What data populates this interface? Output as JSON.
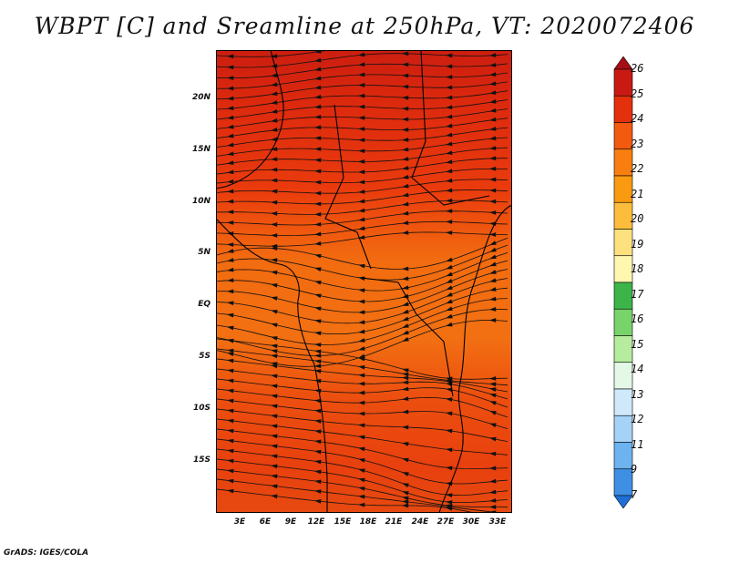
{
  "title": "WBPT [C] and Sreamline at 250hPa, VT: 2020072406",
  "credit": "GrADS: IGES/COLA",
  "lat_labels": [
    "20N",
    "15N",
    "10N",
    "5N",
    "EQ",
    "5S",
    "10S",
    "15S"
  ],
  "lon_labels": [
    "3E",
    "6E",
    "9E",
    "12E",
    "15E",
    "18E",
    "21E",
    "24E",
    "27E",
    "30E",
    "33E"
  ],
  "colorbar": {
    "labels": [
      "26",
      "25",
      "24",
      "23",
      "22",
      "21",
      "20",
      "19",
      "18",
      "17",
      "16",
      "15",
      "14",
      "13",
      "12",
      "11",
      "9",
      "7"
    ],
    "colors": [
      "#a50f15",
      "#c81a12",
      "#e3300d",
      "#f25a10",
      "#f77e0f",
      "#f99a10",
      "#fbbd3b",
      "#fde17f",
      "#fff6b0",
      "#3cb44a",
      "#78d36a",
      "#b6ec9e",
      "#e3f8e6",
      "#cfe9fb",
      "#a5d2f7",
      "#6cb3ef",
      "#3f8fe4",
      "#1f6fd6"
    ]
  },
  "map": {
    "description_colors": {
      "north": "#d8250e",
      "middle": "#f06a10",
      "south": "#e9400e"
    }
  }
}
